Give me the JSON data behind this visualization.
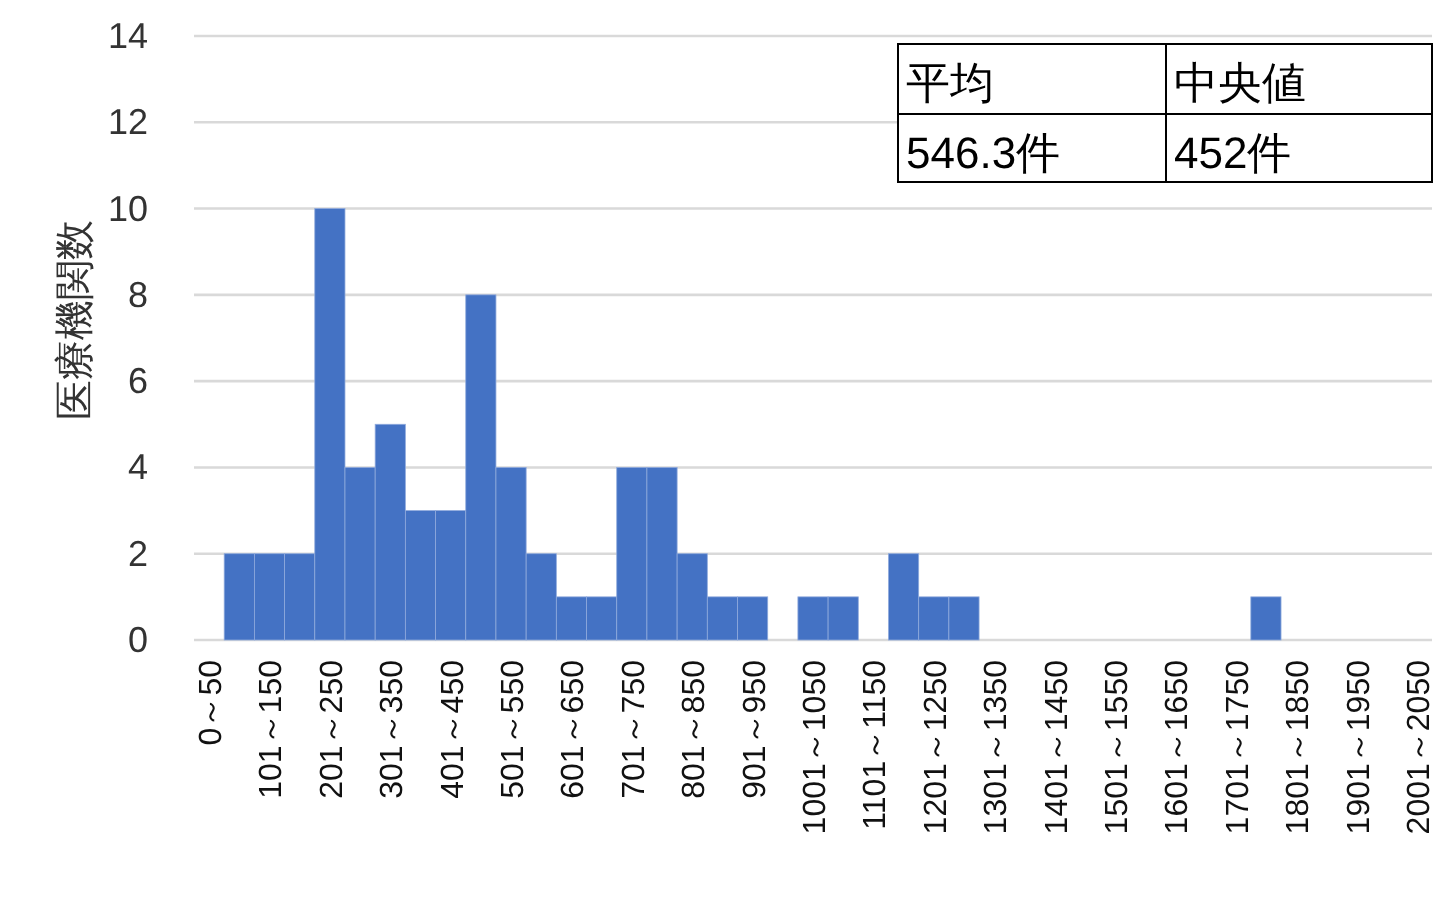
{
  "chart_data": {
    "type": "bar",
    "ylabel": "医療機関数",
    "categories": [
      "0～50",
      null,
      "101～150",
      null,
      "201～250",
      null,
      "301～350",
      null,
      "401～450",
      null,
      "501～550",
      null,
      "601～650",
      null,
      "701～750",
      null,
      "801～850",
      null,
      "901～950",
      null,
      "1001～1050",
      null,
      "1101～1150",
      null,
      "1201～1250",
      null,
      "1301～1350",
      null,
      "1401～1450",
      null,
      "1501～1550",
      null,
      "1601～1650",
      null,
      "1701～1750",
      null,
      "1801～1850",
      null,
      "1901～1950",
      null,
      "2001～2050"
    ],
    "values": [
      0,
      2,
      2,
      2,
      10,
      4,
      5,
      3,
      3,
      8,
      4,
      2,
      1,
      1,
      4,
      4,
      2,
      1,
      1,
      0,
      1,
      1,
      0,
      2,
      1,
      1,
      0,
      0,
      0,
      0,
      0,
      0,
      0,
      0,
      0,
      1,
      0,
      0,
      0,
      0,
      0
    ],
    "color": "#4472c4",
    "ylim": [
      0,
      14
    ],
    "yticks": [
      0,
      2,
      4,
      6,
      8,
      10,
      12,
      14
    ],
    "grid": "y",
    "annotations": [
      "平均",
      "中央値",
      "546.3件",
      "452件"
    ]
  }
}
